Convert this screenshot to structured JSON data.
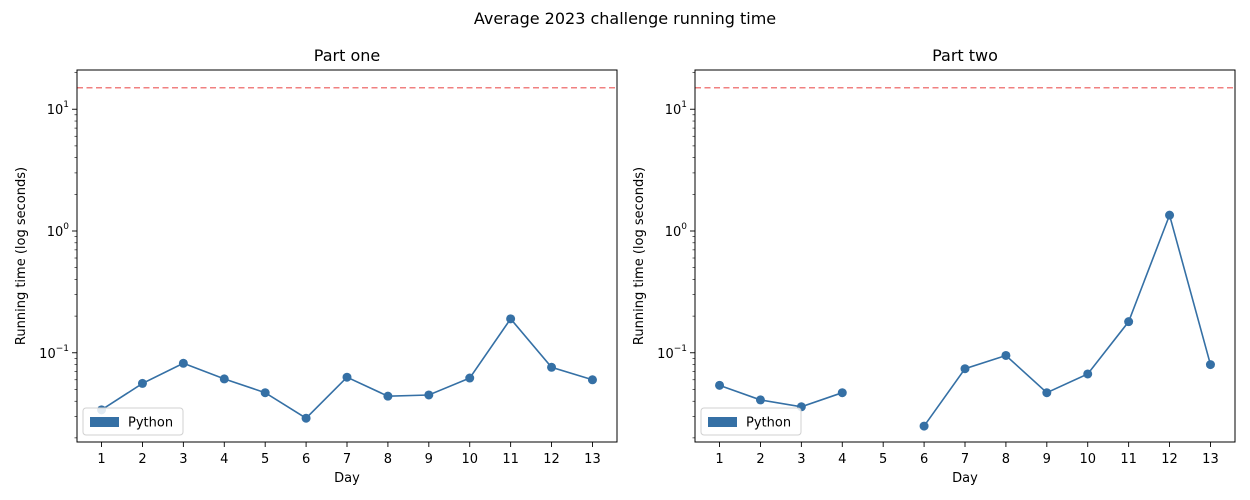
{
  "figure": {
    "title": "Average 2023 challenge running time"
  },
  "colors": {
    "series": "#3570a5",
    "threshold": "#f08080",
    "axes": "#000000"
  },
  "chart_data": [
    {
      "type": "line",
      "title": "Part one",
      "xlabel": "Day",
      "ylabel": "Running time (log seconds)",
      "yscale": "log",
      "ylim": [
        0.0185,
        21
      ],
      "xlim": [
        0.4,
        13.6
      ],
      "xticks": [
        1,
        2,
        3,
        4,
        5,
        6,
        7,
        8,
        9,
        10,
        11,
        12,
        13
      ],
      "yticks": [
        {
          "value": 0.1,
          "base": "10",
          "exp": "−1"
        },
        {
          "value": 1,
          "base": "10",
          "exp": "0"
        },
        {
          "value": 10,
          "base": "10",
          "exp": "1"
        }
      ],
      "threshold": {
        "value": 15,
        "style": "dashed"
      },
      "legend": {
        "label": "Python",
        "position": "lower left"
      },
      "series": [
        {
          "name": "Python",
          "x": [
            1,
            2,
            3,
            4,
            5,
            6,
            7,
            8,
            9,
            10,
            11,
            12,
            13
          ],
          "y": [
            0.034,
            0.056,
            0.082,
            0.061,
            0.047,
            0.029,
            0.063,
            0.044,
            0.045,
            0.062,
            0.19,
            0.076,
            0.06
          ]
        }
      ],
      "grid": false
    },
    {
      "type": "line",
      "title": "Part two",
      "xlabel": "Day",
      "ylabel": "Running time (log seconds)",
      "yscale": "log",
      "ylim": [
        0.0185,
        21
      ],
      "xlim": [
        0.4,
        13.6
      ],
      "xticks": [
        1,
        2,
        3,
        4,
        5,
        6,
        7,
        8,
        9,
        10,
        11,
        12,
        13
      ],
      "yticks": [
        {
          "value": 0.1,
          "base": "10",
          "exp": "−1"
        },
        {
          "value": 1,
          "base": "10",
          "exp": "0"
        },
        {
          "value": 10,
          "base": "10",
          "exp": "1"
        }
      ],
      "threshold": {
        "value": 15,
        "style": "dashed"
      },
      "legend": {
        "label": "Python",
        "position": "lower left"
      },
      "series": [
        {
          "name": "Python",
          "x": [
            1,
            2,
            3,
            4,
            5,
            6,
            7,
            8,
            9,
            10,
            11,
            12,
            13
          ],
          "y": [
            0.054,
            0.041,
            0.036,
            0.047,
            null,
            0.025,
            0.074,
            0.095,
            0.047,
            0.067,
            0.18,
            1.35,
            0.08
          ]
        }
      ],
      "grid": false
    }
  ]
}
